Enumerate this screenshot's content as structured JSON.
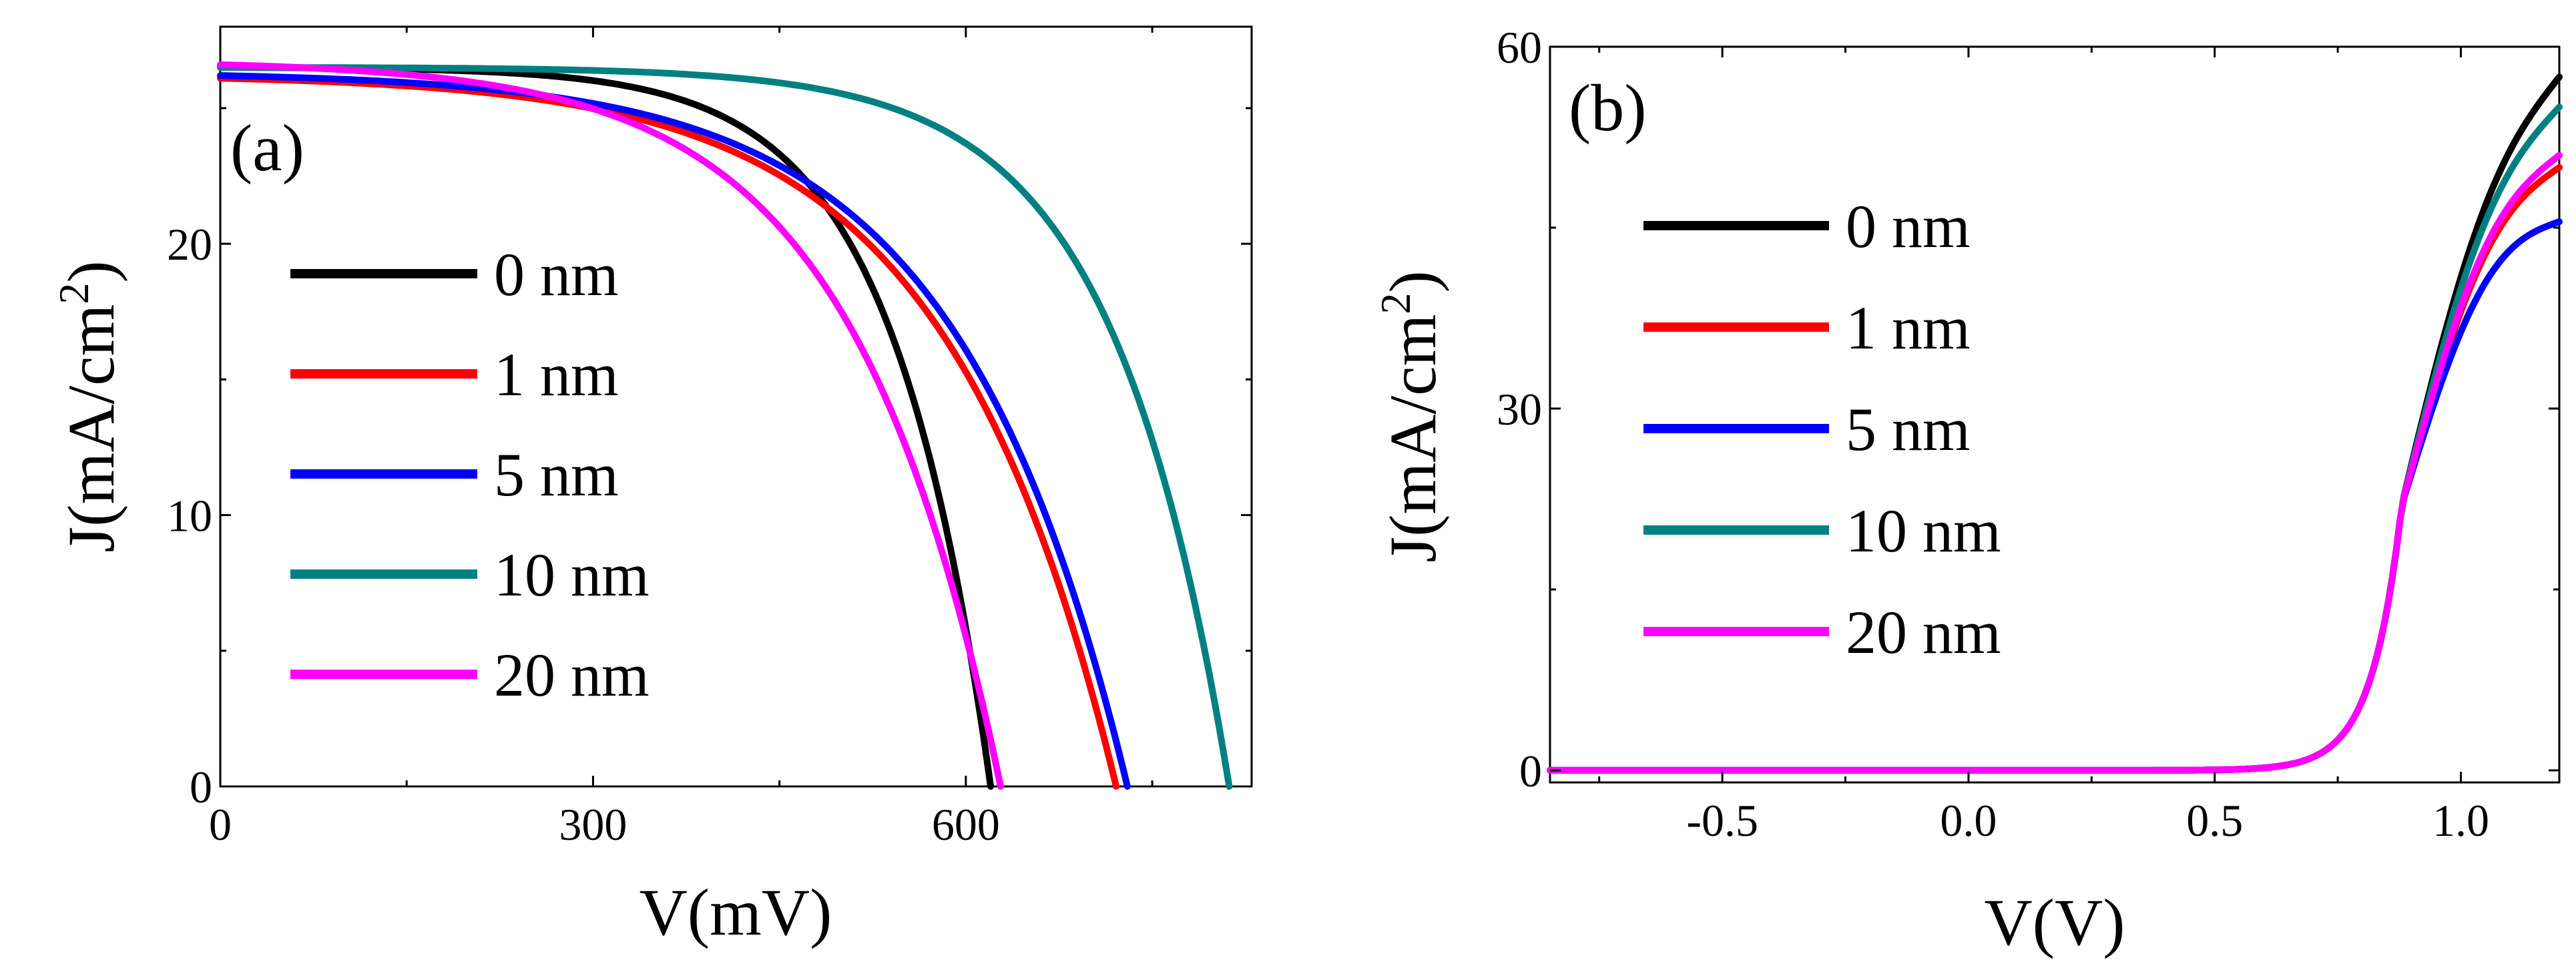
{
  "chart_data": [
    {
      "type": "line",
      "panel_label": "(a)",
      "xlabel": "V(mV)",
      "ylabel": "J(mA/cm",
      "ylabel_sup": "2",
      "ylabel_close": ")",
      "xlim": [
        0,
        830
      ],
      "ylim": [
        0,
        28
      ],
      "xticks": [
        0,
        300,
        600
      ],
      "xtick_labels": [
        "0",
        "300",
        "600"
      ],
      "yticks": [
        0,
        10,
        20
      ],
      "ytick_labels": [
        "0",
        "10",
        "20"
      ],
      "legend_position": "center-left",
      "series": [
        {
          "name": "0 nm",
          "color": "#000000",
          "jsc": 26.5,
          "voc": 620,
          "shape": 7.7
        },
        {
          "name": "1 nm",
          "color": "#ff0000",
          "jsc": 26.1,
          "voc": 721,
          "shape": 5.2
        },
        {
          "name": "5 nm",
          "color": "#0000ff",
          "jsc": 26.2,
          "voc": 730,
          "shape": 5.3
        },
        {
          "name": "10 nm",
          "color": "#008080",
          "jsc": 26.5,
          "voc": 812,
          "shape": 8.6
        },
        {
          "name": "20 nm",
          "color": "#ff00ff",
          "jsc": 26.6,
          "voc": 628,
          "shape": 5.2
        }
      ]
    },
    {
      "type": "line",
      "panel_label": "(b)",
      "xlabel": "V(V)",
      "ylabel": "J(mA/cm",
      "ylabel_sup": "2",
      "ylabel_close": ")",
      "xlim": [
        -0.85,
        1.2
      ],
      "ylim": [
        -1,
        60
      ],
      "xticks": [
        -0.5,
        0.0,
        0.5,
        1.0
      ],
      "xtick_labels": [
        "-0.5",
        "0.0",
        "0.5",
        "1.0"
      ],
      "yticks": [
        0,
        30,
        60
      ],
      "ytick_labels": [
        "0",
        "30",
        "60"
      ],
      "legend_position": "upper-left",
      "series": [
        {
          "name": "0 nm",
          "color": "#000000",
          "j_at_1_2V": 57.5
        },
        {
          "name": "1 nm",
          "color": "#ff0000",
          "j_at_1_2V": 50.0
        },
        {
          "name": "5 nm",
          "color": "#0000ff",
          "j_at_1_2V": 45.5
        },
        {
          "name": "10 nm",
          "color": "#008080",
          "j_at_1_2V": 55.0
        },
        {
          "name": "20 nm",
          "color": "#ff00ff",
          "j_at_1_2V": 51.0
        }
      ]
    }
  ]
}
